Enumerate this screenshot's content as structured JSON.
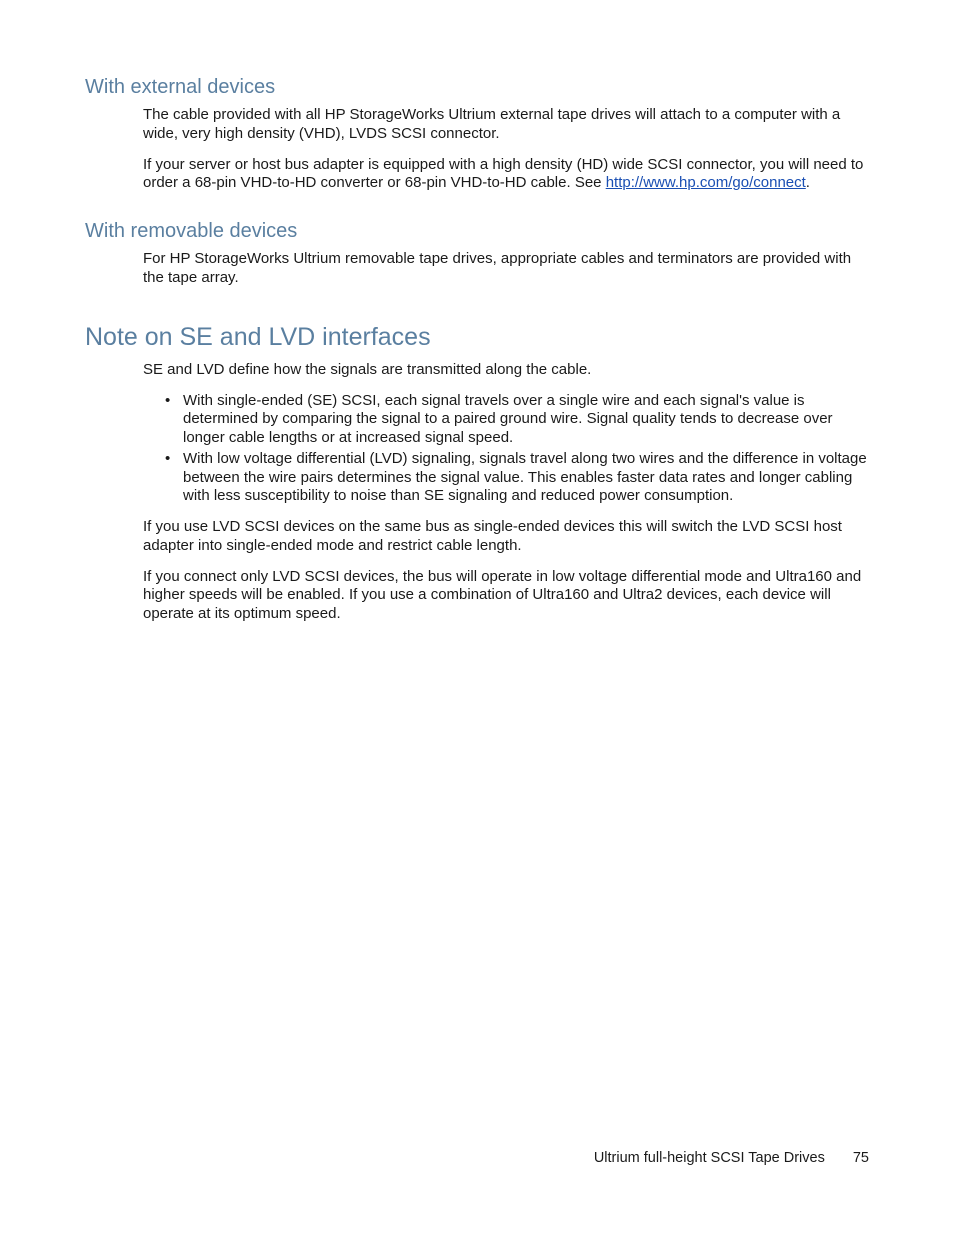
{
  "colors": {
    "heading": "#5a7fa0",
    "text": "#1a1a1a",
    "link": "#1a4fb3",
    "background": "#ffffff"
  },
  "typography": {
    "body_fontsize": 15,
    "h1_fontsize": 25,
    "h2_fontsize": 20,
    "footer_fontsize": 14.5,
    "font_family": "Segoe UI / Futura-like light sans"
  },
  "sections": {
    "ext": {
      "heading": "With external devices",
      "p1": "The cable provided with all HP StorageWorks Ultrium external tape drives will attach to a computer with a wide, very high density (VHD), LVDS SCSI connector.",
      "p2a": "If your server or host bus adapter is equipped with a high density (HD) wide SCSI connector, you will need to order a 68-pin VHD-to-HD converter or 68-pin VHD-to-HD cable.  See ",
      "link_text": "http://www.hp.com/go/connect",
      "link_href": "http://www.hp.com/go/connect",
      "p2b": "."
    },
    "rem": {
      "heading": "With removable devices",
      "p1": "For HP StorageWorks Ultrium removable tape drives, appropriate cables and terminators are provided with the tape array."
    },
    "note": {
      "heading": "Note on SE and LVD interfaces",
      "p1": "SE and LVD define how the signals are transmitted along the cable.",
      "b1": "With single-ended (SE) SCSI, each signal travels over a single wire and each signal's value is determined by comparing the signal to a paired ground wire.  Signal quality tends to decrease over longer cable lengths or at increased signal speed.",
      "b2": "With low voltage differential (LVD) signaling, signals travel along two wires and the difference in voltage between the wire pairs determines the signal value.  This enables faster data rates and longer cabling with less susceptibility to noise than SE signaling and reduced power consumption.",
      "p2": "If you use LVD SCSI devices on the same bus as single-ended devices this will switch the LVD SCSI host adapter into single-ended mode and restrict cable length.",
      "p3": "If you connect only LVD SCSI devices, the bus will operate in low voltage differential mode and Ultra160 and higher speeds will be enabled.  If you use a combination of Ultra160 and Ultra2 devices, each device will operate at its optimum speed."
    }
  },
  "footer": {
    "title": "Ultrium full-height SCSI Tape Drives",
    "page": "75"
  }
}
